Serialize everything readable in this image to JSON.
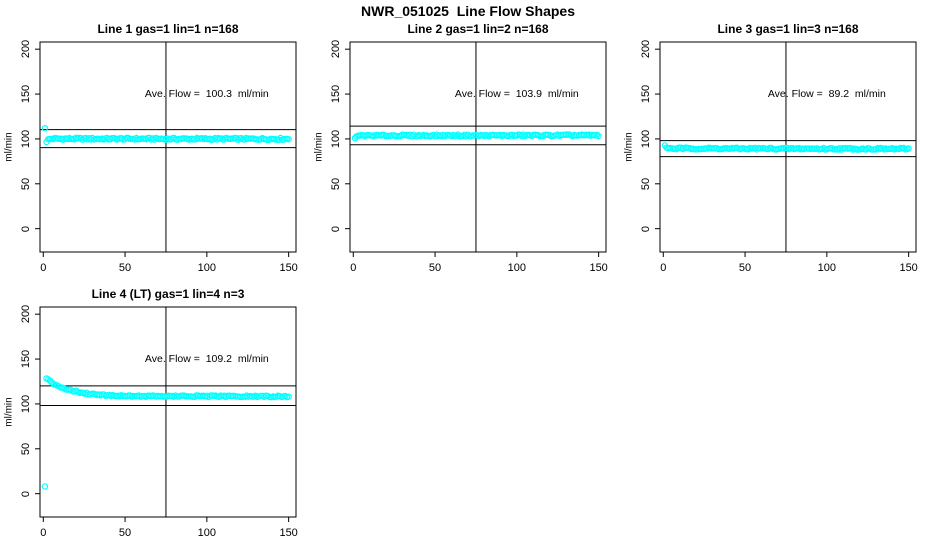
{
  "main_title": "NWR_051025  Line Flow Shapes",
  "colors": {
    "background": "#ffffff",
    "axis": "#000000",
    "text": "#000000",
    "point": "#00ffff"
  },
  "chart_data": [
    {
      "type": "scatter",
      "title": "Line 1 gas=1 lin=1 n=168",
      "annotation": "Ave. Flow =  100.3  ml/min",
      "annotation_pos": [
        100,
        150
      ],
      "ave_flow": 100.3,
      "xlabel": "",
      "ylabel": "ml/min",
      "xticks": [
        0,
        50,
        100,
        150
      ],
      "yticks": [
        0,
        50,
        100,
        150,
        200
      ],
      "xlim": [
        -2,
        154.5
      ],
      "ylim": [
        -26,
        208
      ],
      "grid": false,
      "ref_lines": {
        "upper": 110.3,
        "lower": 90.3,
        "vertical": 75
      },
      "marker": "open-circle",
      "series": {
        "x_start": 2,
        "x_end": 150,
        "n_points": 149,
        "noise": 1.1,
        "profile": [
          [
            2,
            97.3
          ],
          [
            3,
            99.2
          ],
          [
            5,
            100.2
          ],
          [
            150,
            100.0
          ]
        ]
      },
      "extra_points": [
        [
          1,
          112
        ]
      ]
    },
    {
      "type": "scatter",
      "title": "Line 2 gas=1 lin=2 n=168",
      "annotation": "Ave. Flow =  103.9  ml/min",
      "annotation_pos": [
        100,
        150
      ],
      "ave_flow": 103.9,
      "xlabel": "",
      "ylabel": "ml/min",
      "xticks": [
        0,
        50,
        100,
        150
      ],
      "yticks": [
        0,
        50,
        100,
        150,
        200
      ],
      "xlim": [
        -2,
        154.5
      ],
      "ylim": [
        -26,
        208
      ],
      "grid": false,
      "ref_lines": {
        "upper": 114.3,
        "lower": 93.5,
        "vertical": 75
      },
      "marker": "open-circle",
      "series": {
        "x_start": 2,
        "x_end": 150,
        "n_points": 149,
        "noise": 1.0,
        "profile": [
          [
            2,
            102.3
          ],
          [
            4,
            103.7
          ],
          [
            150,
            104.0
          ]
        ]
      },
      "extra_points": [
        [
          1,
          100.8
        ]
      ]
    },
    {
      "type": "scatter",
      "title": "Line 3 gas=1 lin=3 n=168",
      "annotation": "Ave. Flow =  89.2  ml/min",
      "annotation_pos": [
        100,
        150
      ],
      "ave_flow": 89.2,
      "xlabel": "",
      "ylabel": "ml/min",
      "xticks": [
        0,
        50,
        100,
        150
      ],
      "yticks": [
        0,
        50,
        100,
        150,
        200
      ],
      "xlim": [
        -2,
        154.5
      ],
      "ylim": [
        -26,
        208
      ],
      "grid": false,
      "ref_lines": {
        "upper": 98.1,
        "lower": 80.3,
        "vertical": 75
      },
      "marker": "open-circle",
      "series": {
        "x_start": 2,
        "x_end": 150,
        "n_points": 149,
        "noise": 1.0,
        "profile": [
          [
            2,
            90.6
          ],
          [
            4,
            89.4
          ],
          [
            150,
            88.9
          ]
        ]
      },
      "extra_points": [
        [
          1,
          92.8
        ]
      ]
    },
    {
      "type": "scatter",
      "title": "Line 4 (LT) gas=1 lin=4 n=3",
      "annotation": "Ave. Flow =  109.2  ml/min",
      "annotation_pos": [
        100,
        150
      ],
      "ave_flow": 109.2,
      "xlabel": "",
      "ylabel": "ml/min",
      "xticks": [
        0,
        50,
        100,
        150
      ],
      "yticks": [
        0,
        50,
        100,
        150,
        200
      ],
      "xlim": [
        -2,
        154.5
      ],
      "ylim": [
        -26,
        208
      ],
      "grid": false,
      "ref_lines": {
        "upper": 120.1,
        "lower": 98.3,
        "vertical": 75
      },
      "marker": "open-circle",
      "series": {
        "x_start": 2,
        "x_end": 150,
        "n_points": 140,
        "noise": 0.9,
        "profile": [
          [
            2,
            127.9
          ],
          [
            6,
            123.0
          ],
          [
            10,
            119.4
          ],
          [
            14,
            116.7
          ],
          [
            18,
            114.6
          ],
          [
            22,
            113.1
          ],
          [
            26,
            111.9
          ],
          [
            30,
            111.0
          ],
          [
            38,
            109.9
          ],
          [
            46,
            109.2
          ],
          [
            60,
            108.7
          ],
          [
            100,
            108.5
          ],
          [
            150,
            108.3
          ]
        ]
      },
      "extra_points": [
        [
          1,
          8
        ]
      ]
    }
  ]
}
